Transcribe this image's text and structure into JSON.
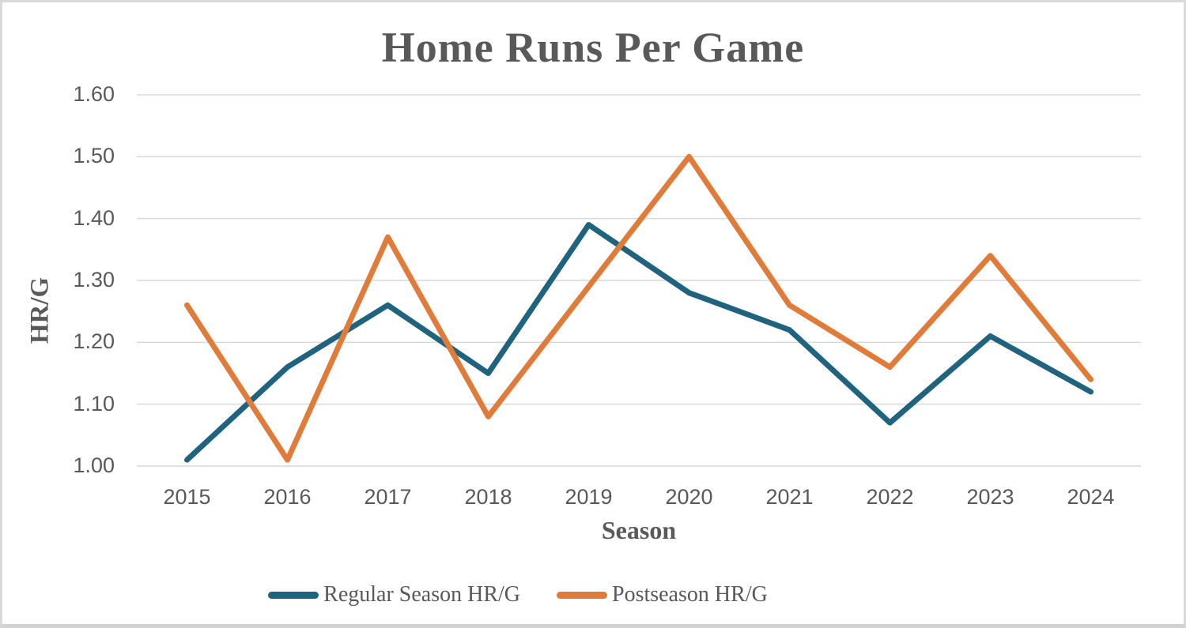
{
  "chart_data": {
    "type": "line",
    "title": "Home Runs Per Game",
    "xlabel": "Season",
    "ylabel": "HR/G",
    "categories": [
      "2015",
      "2016",
      "2017",
      "2018",
      "2019",
      "2020",
      "2021",
      "2022",
      "2023",
      "2024"
    ],
    "series": [
      {
        "name": "Regular Season HR/G",
        "color": "#20637F",
        "values": [
          1.01,
          1.16,
          1.26,
          1.15,
          1.39,
          1.28,
          1.22,
          1.07,
          1.21,
          1.12
        ]
      },
      {
        "name": "Postseason HR/G",
        "color": "#E07B39",
        "values": [
          1.26,
          1.01,
          1.37,
          1.08,
          1.29,
          1.5,
          1.26,
          1.16,
          1.34,
          1.14
        ]
      }
    ],
    "ylim": [
      1.0,
      1.6
    ],
    "y_ticks": [
      "1.00",
      "1.10",
      "1.20",
      "1.30",
      "1.40",
      "1.50",
      "1.60"
    ],
    "grid": true,
    "legend_position": "bottom"
  },
  "colors": {
    "text": "#595959",
    "gridline": "#D9D9D9",
    "background": "#FFFFFF",
    "border": "#D9D9D9",
    "series_regular": "#20637F",
    "series_postseason": "#E07B39"
  }
}
